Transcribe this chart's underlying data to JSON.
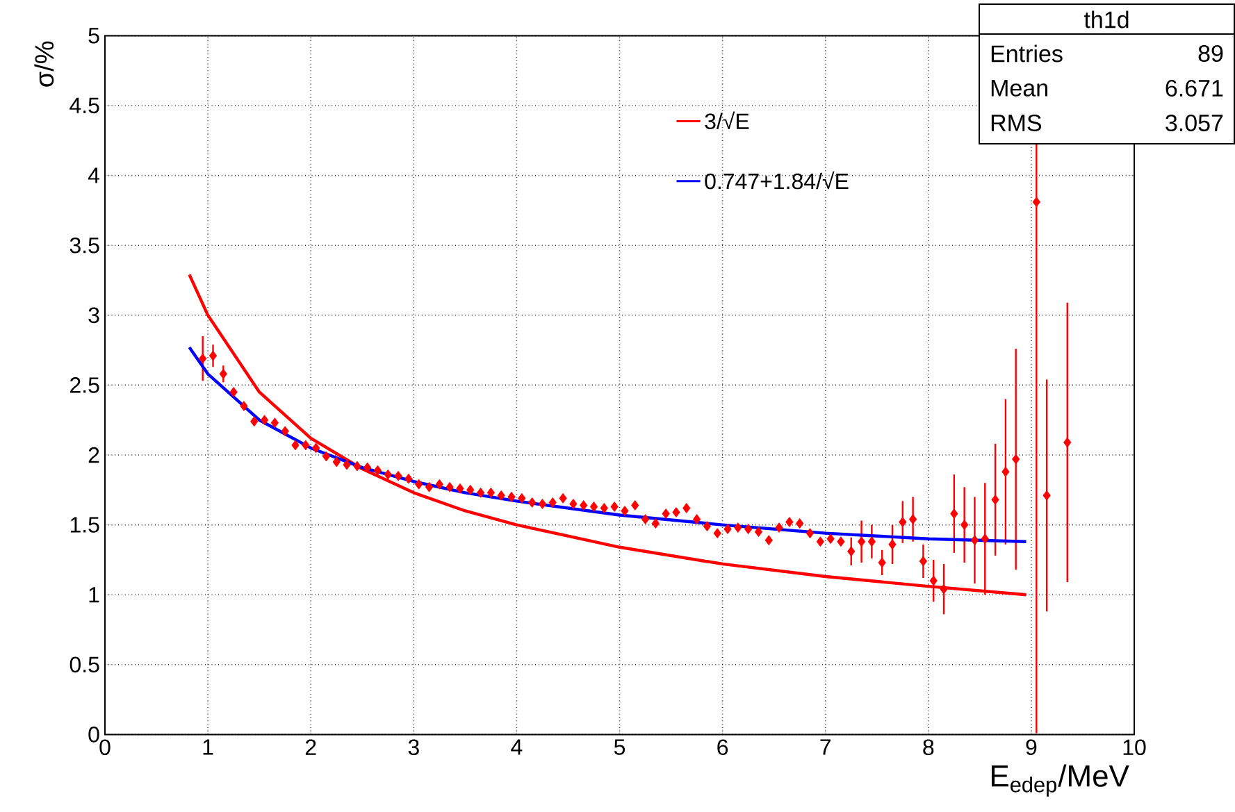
{
  "chart_data": {
    "type": "scatter",
    "xlabel": "E$_{edep}$/MeV",
    "ylabel": "σ/%",
    "xlim": [
      0,
      10
    ],
    "ylim": [
      0,
      5
    ],
    "xticks": [
      0,
      1,
      2,
      3,
      4,
      5,
      6,
      7,
      8,
      9,
      10
    ],
    "yticks": [
      0,
      0.5,
      1,
      1.5,
      2,
      2.5,
      3,
      3.5,
      4,
      4.5,
      5
    ],
    "grid": true,
    "legend": "top",
    "marker": "diamond",
    "annotations": [
      "th1d",
      "Entries",
      "89",
      "Mean",
      "6.671",
      "RMS",
      "3.057"
    ],
    "series": [
      {
        "color": "#ff0000",
        "x": [
          0.95,
          1.05,
          1.15,
          1.25,
          1.35,
          1.45,
          1.55,
          1.65,
          1.75,
          1.85,
          1.95,
          2.05,
          2.15,
          2.25,
          2.35,
          2.45,
          2.55,
          2.65,
          2.75,
          2.85,
          2.95,
          3.05,
          3.15,
          3.25,
          3.35,
          3.45,
          3.55,
          3.65,
          3.75,
          3.85,
          3.95,
          4.05,
          4.15,
          4.25,
          4.35,
          4.45,
          4.55,
          4.65,
          4.75,
          4.85,
          4.95,
          5.05,
          5.15,
          5.25,
          5.35,
          5.45,
          5.55,
          5.65,
          5.75,
          5.85,
          5.95,
          6.05,
          6.15,
          6.25,
          6.35,
          6.45,
          6.55,
          6.65,
          6.75,
          6.85,
          6.95,
          7.05,
          7.15,
          7.25,
          7.35,
          7.45,
          7.55,
          7.65,
          7.75,
          7.85,
          7.95,
          8.05,
          8.15,
          8.25,
          8.35,
          8.45,
          8.55,
          8.65,
          8.75,
          8.85,
          9.05,
          9.15,
          9.35
        ],
        "values": [
          2.69,
          2.71,
          2.58,
          2.45,
          2.35,
          2.24,
          2.25,
          2.23,
          2.17,
          2.07,
          2.07,
          2.05,
          1.99,
          1.95,
          1.93,
          1.92,
          1.91,
          1.89,
          1.86,
          1.85,
          1.83,
          1.79,
          1.77,
          1.79,
          1.77,
          1.76,
          1.75,
          1.73,
          1.73,
          1.71,
          1.7,
          1.69,
          1.66,
          1.65,
          1.66,
          1.69,
          1.65,
          1.64,
          1.63,
          1.62,
          1.63,
          1.6,
          1.64,
          1.54,
          1.51,
          1.58,
          1.59,
          1.62,
          1.54,
          1.49,
          1.44,
          1.47,
          1.48,
          1.47,
          1.45,
          1.39,
          1.48,
          1.52,
          1.51,
          1.44,
          1.38,
          1.4,
          1.38,
          1.31,
          1.38,
          1.38,
          1.23,
          1.36,
          1.52,
          1.54,
          1.24,
          1.1,
          1.04,
          1.58,
          1.5,
          1.39,
          1.4,
          1.68,
          1.88,
          1.97,
          3.81,
          1.71,
          2.09
        ],
        "errors": [
          0.16,
          0.08,
          0.06,
          null,
          null,
          null,
          null,
          null,
          null,
          null,
          null,
          null,
          null,
          null,
          null,
          null,
          null,
          null,
          null,
          null,
          null,
          null,
          null,
          null,
          null,
          null,
          null,
          null,
          null,
          null,
          null,
          null,
          null,
          null,
          null,
          null,
          null,
          null,
          null,
          null,
          null,
          null,
          null,
          null,
          null,
          null,
          null,
          null,
          null,
          null,
          null,
          null,
          null,
          null,
          null,
          null,
          null,
          null,
          null,
          null,
          null,
          null,
          null,
          0.1,
          0.15,
          0.12,
          0.09,
          0.14,
          0.15,
          0.16,
          0.12,
          0.15,
          0.18,
          0.28,
          0.27,
          0.31,
          0.4,
          0.4,
          0.52,
          0.79,
          [
            0.01,
            5
          ],
          0.83,
          1.0
        ]
      },
      {
        "type": "line",
        "name": "3/√E",
        "color": "#ff0000",
        "marker": "none",
        "x": [
          0.82,
          1.0,
          1.5,
          2.0,
          2.5,
          3.0,
          3.5,
          4.0,
          5.0,
          6.0,
          7.0,
          8.0,
          8.95
        ],
        "values": [
          3.29,
          3.0,
          2.45,
          2.12,
          1.9,
          1.73,
          1.6,
          1.5,
          1.34,
          1.22,
          1.13,
          1.06,
          1.0
        ]
      },
      {
        "type": "line",
        "name": "0.747+1.84/√E",
        "color": "#0000ff",
        "marker": "none",
        "x": [
          0.82,
          1.0,
          1.5,
          2.0,
          2.5,
          3.0,
          3.5,
          4.0,
          5.0,
          6.0,
          7.0,
          8.0,
          8.95
        ],
        "values": [
          2.77,
          2.58,
          2.25,
          2.05,
          1.91,
          1.81,
          1.73,
          1.67,
          1.57,
          1.5,
          1.44,
          1.4,
          1.38
        ]
      }
    ]
  }
}
